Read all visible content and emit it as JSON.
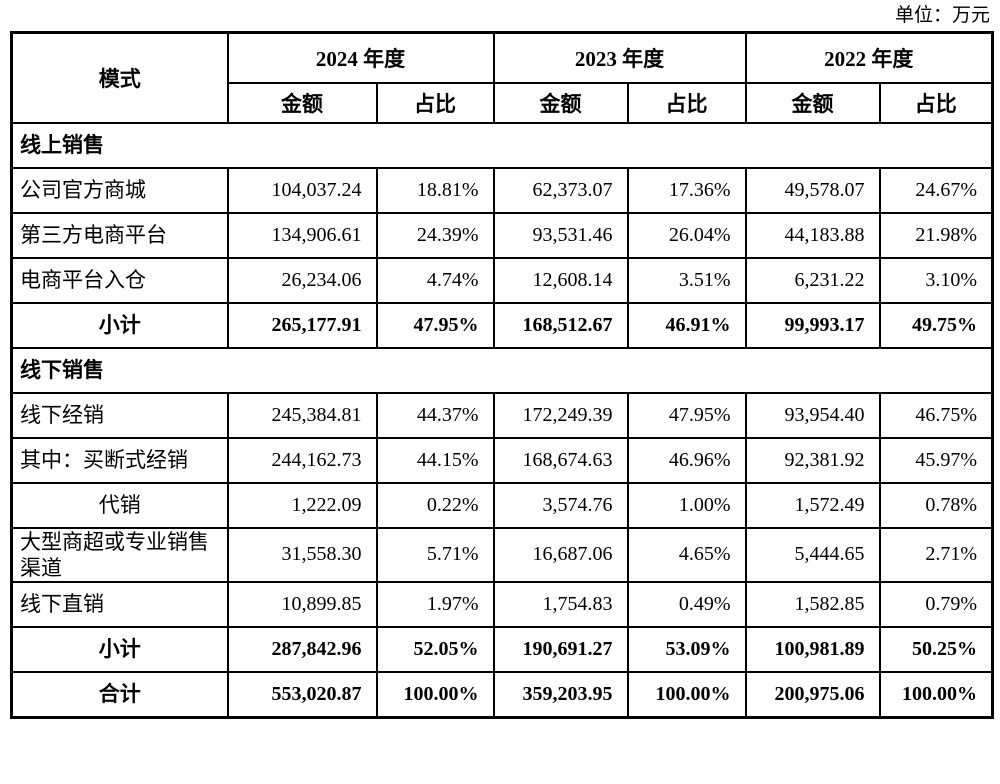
{
  "page": {
    "unit_label": "单位：万元"
  },
  "colors": {
    "border": "#000000",
    "text": "#000000",
    "background": "#ffffff"
  },
  "table": {
    "header": {
      "mode_label": "模式",
      "years": [
        "2024 年度",
        "2023 年度",
        "2022 年度"
      ],
      "amount_label": "金额",
      "ratio_label": "占比"
    },
    "rows": [
      {
        "type": "section",
        "label": "线上销售"
      },
      {
        "type": "data",
        "label": "公司官方商城",
        "label_align": "left",
        "bold": false,
        "values": [
          "104,037.24",
          "18.81%",
          "62,373.07",
          "17.36%",
          "49,578.07",
          "24.67%"
        ]
      },
      {
        "type": "data",
        "label": "第三方电商平台",
        "label_align": "left",
        "bold": false,
        "values": [
          "134,906.61",
          "24.39%",
          "93,531.46",
          "26.04%",
          "44,183.88",
          "21.98%"
        ]
      },
      {
        "type": "data",
        "label": "电商平台入仓",
        "label_align": "left",
        "bold": false,
        "values": [
          "26,234.06",
          "4.74%",
          "12,608.14",
          "3.51%",
          "6,231.22",
          "3.10%"
        ]
      },
      {
        "type": "subtotal",
        "label": "小计",
        "label_align": "center",
        "bold": true,
        "values": [
          "265,177.91",
          "47.95%",
          "168,512.67",
          "46.91%",
          "99,993.17",
          "49.75%"
        ]
      },
      {
        "type": "section",
        "label": "线下销售"
      },
      {
        "type": "data",
        "label": "线下经销",
        "label_align": "left",
        "bold": false,
        "values": [
          "245,384.81",
          "44.37%",
          "172,249.39",
          "47.95%",
          "93,954.40",
          "46.75%"
        ]
      },
      {
        "type": "data",
        "label": "其中：买断式经销",
        "label_align": "left",
        "bold": false,
        "values": [
          "244,162.73",
          "44.15%",
          "168,674.63",
          "46.96%",
          "92,381.92",
          "45.97%"
        ]
      },
      {
        "type": "data",
        "label": "代销",
        "label_align": "center",
        "bold": false,
        "values": [
          "1,222.09",
          "0.22%",
          "3,574.76",
          "1.00%",
          "1,572.49",
          "0.78%"
        ]
      },
      {
        "type": "data",
        "label": "大型商超或专业销售渠道",
        "label_align": "left",
        "bold": false,
        "values": [
          "31,558.30",
          "5.71%",
          "16,687.06",
          "4.65%",
          "5,444.65",
          "2.71%"
        ]
      },
      {
        "type": "data",
        "label": "线下直销",
        "label_align": "left",
        "bold": false,
        "values": [
          "10,899.85",
          "1.97%",
          "1,754.83",
          "0.49%",
          "1,582.85",
          "0.79%"
        ]
      },
      {
        "type": "subtotal",
        "label": "小计",
        "label_align": "center",
        "bold": true,
        "values": [
          "287,842.96",
          "52.05%",
          "190,691.27",
          "53.09%",
          "100,981.89",
          "50.25%"
        ]
      },
      {
        "type": "total",
        "label": "合计",
        "label_align": "center",
        "bold": true,
        "values": [
          "553,020.87",
          "100.00%",
          "359,203.95",
          "100.00%",
          "200,975.06",
          "100.00%"
        ]
      }
    ]
  }
}
